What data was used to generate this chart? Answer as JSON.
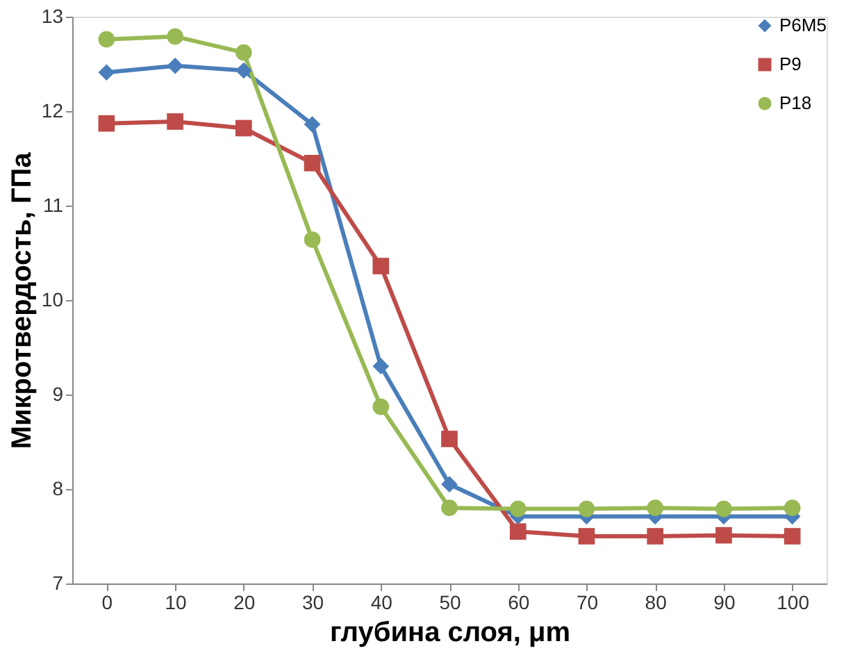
{
  "chart_data": {
    "type": "line",
    "xlabel": "глубина слоя, μm",
    "ylabel": "Микротвердость, ГПа",
    "categories": [
      "0",
      "10",
      "20",
      "30",
      "40",
      "50",
      "60",
      "70",
      "80",
      "90",
      "100"
    ],
    "series": [
      {
        "name": "Р6М5",
        "color": "#4a7ebb",
        "marker": "diamond",
        "values": [
          12.41,
          12.48,
          12.43,
          11.86,
          9.3,
          8.05,
          7.71,
          7.71,
          7.71,
          7.71,
          7.71
        ]
      },
      {
        "name": "Р9",
        "color": "#be4b48",
        "marker": "square",
        "values": [
          11.87,
          11.89,
          11.82,
          11.45,
          10.36,
          8.53,
          7.55,
          7.5,
          7.5,
          7.51,
          7.5
        ]
      },
      {
        "name": "Р18",
        "color": "#98b954",
        "marker": "circle",
        "values": [
          12.76,
          12.79,
          12.62,
          10.64,
          8.87,
          7.8,
          7.79,
          7.79,
          7.8,
          7.79,
          7.8
        ]
      }
    ],
    "ylim": [
      7,
      13
    ],
    "yticks": [
      7,
      8,
      9,
      10,
      11,
      12,
      13
    ],
    "grid": false,
    "legend": "top right",
    "line_style": "solid"
  }
}
